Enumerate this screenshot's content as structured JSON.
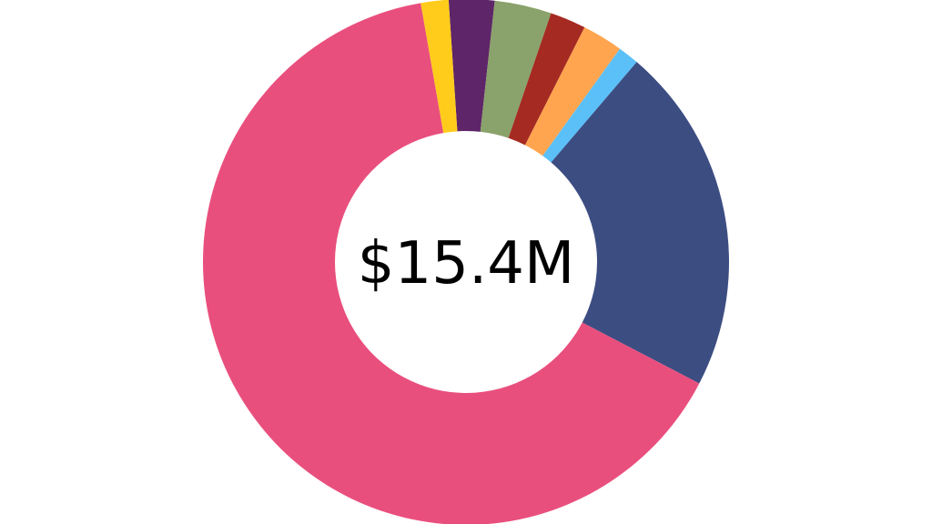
{
  "chart_data": {
    "type": "pie",
    "variant": "donut",
    "center_text": "$15.4M",
    "start_angle_deg": -3.8,
    "slices": [
      {
        "value": 2.8,
        "color": "#5E2568"
      },
      {
        "value": 3.5,
        "color": "#8AA26B"
      },
      {
        "value": 2.2,
        "color": "#A52A22"
      },
      {
        "value": 2.5,
        "color": "#FFA54F"
      },
      {
        "value": 1.3,
        "color": "#5BC0F8"
      },
      {
        "value": 21.4,
        "color": "#3C4D82"
      },
      {
        "value": 64.6,
        "color": "#E94F7D"
      },
      {
        "value": 1.7,
        "color": "#FFCC1B"
      }
    ]
  }
}
